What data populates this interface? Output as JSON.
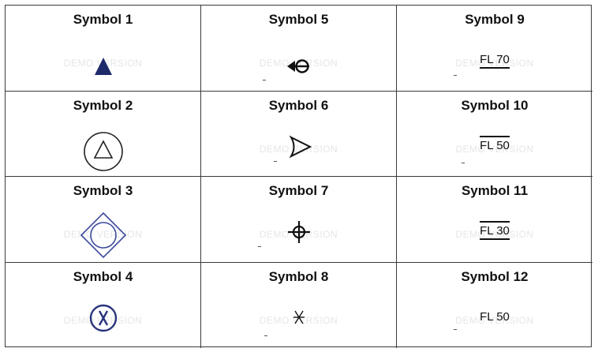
{
  "watermark": "DEMO VERSION",
  "colors": {
    "navy": "#1f2a6b",
    "blue": "#3d4a9c",
    "ink": "#111111",
    "grid": "#3a3a3a"
  },
  "cells": [
    {
      "label": "Symbol 1",
      "icon": "filled-triangle-icon"
    },
    {
      "label": "Symbol 5",
      "icon": "arrow-circle-icon"
    },
    {
      "label": "Symbol 9",
      "icon": "flight-level-under-icon",
      "text": "FL 70"
    },
    {
      "label": "Symbol 2",
      "icon": "triangle-in-circle-icon"
    },
    {
      "label": "Symbol 6",
      "icon": "curved-triangle-icon"
    },
    {
      "label": "Symbol 10",
      "icon": "flight-level-over-icon",
      "text": "FL 50"
    },
    {
      "label": "Symbol 3",
      "icon": "circle-diamond-icon"
    },
    {
      "label": "Symbol 7",
      "icon": "crosshair-icon"
    },
    {
      "label": "Symbol 11",
      "icon": "flight-level-between-icon",
      "text": "FL 30"
    },
    {
      "label": "Symbol 4",
      "icon": "x-in-circle-icon"
    },
    {
      "label": "Symbol 8",
      "icon": "asterisk-cross-icon"
    },
    {
      "label": "Symbol 12",
      "icon": "flight-level-plain-icon",
      "text": "FL 50"
    }
  ]
}
